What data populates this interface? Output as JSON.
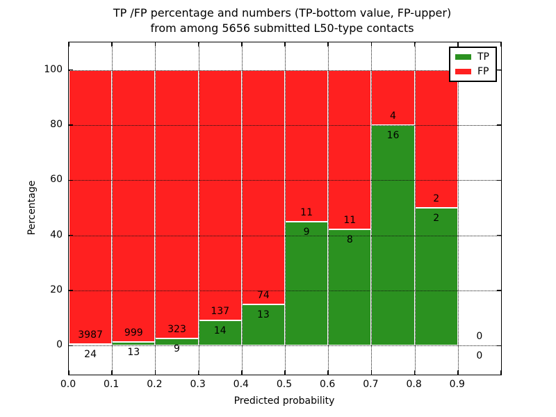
{
  "title": "TP /FP percentage and numbers (TP-bottom value, FP-upper)\nfrom among 5656 submitted L50-type contacts",
  "chart_data": {
    "type": "bar",
    "subtype": "stacked-percentage-histogram",
    "title": "TP /FP percentage and numbers (TP-bottom value, FP-upper) from among 5656 submitted L50-type contacts",
    "xlabel": "Predicted probability",
    "ylabel": "Percentage",
    "xlim": [
      0.0,
      1.0
    ],
    "ylim": [
      -10.5,
      110
    ],
    "bin_width": 0.1,
    "bin_starts": [
      0.0,
      0.1,
      0.2,
      0.3,
      0.4,
      0.5,
      0.6,
      0.7,
      0.8,
      0.9
    ],
    "categories": [
      "0.0-0.1",
      "0.1-0.2",
      "0.2-0.3",
      "0.3-0.4",
      "0.4-0.5",
      "0.5-0.6",
      "0.6-0.7",
      "0.7-0.8",
      "0.8-0.9",
      "0.9-1.0"
    ],
    "series": [
      {
        "name": "TP",
        "color": "#2B9120",
        "values": [
          24,
          13,
          9,
          14,
          13,
          9,
          8,
          16,
          2,
          0
        ]
      },
      {
        "name": "FP",
        "color": "#FF2020",
        "values": [
          3987,
          999,
          323,
          137,
          74,
          11,
          11,
          4,
          2,
          0
        ]
      }
    ],
    "tp_percent_of_bin": [
      0.6,
      1.3,
      2.7,
      9.3,
      14.9,
      45.0,
      42.1,
      80.0,
      50.0,
      0.0
    ],
    "total_submitted": 5656,
    "x_ticks": [
      "0.0",
      "0.1",
      "0.2",
      "0.3",
      "0.4",
      "0.5",
      "0.6",
      "0.7",
      "0.8",
      "0.9"
    ],
    "y_ticks": [
      0,
      20,
      40,
      60,
      80,
      100
    ],
    "grid": "dotted, both axes, drawn over bars",
    "legend": {
      "position": "upper right",
      "entries": [
        {
          "label": "TP",
          "color": "#2B9120"
        },
        {
          "label": "FP",
          "color": "#FF2020"
        }
      ]
    }
  }
}
